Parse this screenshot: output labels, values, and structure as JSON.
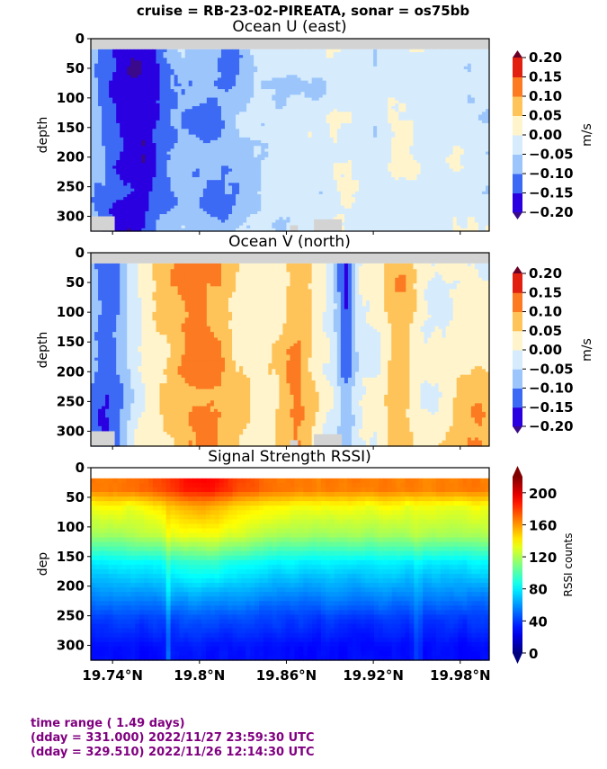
{
  "figure": {
    "suptitle": "cruise = RB-23-02-PIREATA,  sonar = os75bb"
  },
  "chart_data": [
    {
      "type": "heatmap",
      "title": "Ocean U (east)",
      "xlabel": "",
      "ylabel": "depth",
      "x_ticks": [
        "19.74°N",
        "19.8°N",
        "19.86°N",
        "19.92°N",
        "19.98°N"
      ],
      "x_tick_values": [
        19.74,
        19.8,
        19.86,
        19.92,
        19.98
      ],
      "xlim": [
        19.725,
        20.0
      ],
      "y_ticks": [
        "0",
        "50",
        "100",
        "150",
        "200",
        "250",
        "300"
      ],
      "y_tick_values": [
        0,
        50,
        100,
        150,
        200,
        250,
        300
      ],
      "ylim": [
        325,
        0
      ],
      "colorbar": {
        "label": "m/s",
        "ticks": [
          "0.20",
          "0.15",
          "0.10",
          "0.05",
          "0.00",
          "−0.05",
          "−0.10",
          "−0.15",
          "−0.20"
        ],
        "levels": [
          -0.2,
          -0.15,
          -0.1,
          -0.05,
          0.0,
          0.05,
          0.1,
          0.15,
          0.2
        ],
        "colors": [
          "#2a00e0",
          "#3d6af5",
          "#9cc6fb",
          "#d6ecfd",
          "#fff4cc",
          "#fec45a",
          "#fb7a22",
          "#e1200f"
        ],
        "under_color": "#3b0a8a",
        "over_color": "#6a0026"
      },
      "description_trend": "mostly negative (westward) flow, strongest in west near 19.75-19.78°N"
    },
    {
      "type": "heatmap",
      "title": "Ocean V (north)",
      "xlabel": "",
      "ylabel": "depth",
      "x_ticks": [
        "19.74°N",
        "19.8°N",
        "19.86°N",
        "19.92°N",
        "19.98°N"
      ],
      "x_tick_values": [
        19.74,
        19.8,
        19.86,
        19.92,
        19.98
      ],
      "xlim": [
        19.725,
        20.0
      ],
      "y_ticks": [
        "0",
        "50",
        "100",
        "150",
        "200",
        "250",
        "300"
      ],
      "y_tick_values": [
        0,
        50,
        100,
        150,
        200,
        250,
        300
      ],
      "ylim": [
        325,
        0
      ],
      "colorbar": {
        "label": "m/s",
        "ticks": [
          "0.20",
          "0.15",
          "0.10",
          "0.05",
          "0.00",
          "−0.05",
          "−0.10",
          "−0.15",
          "−0.20"
        ],
        "levels": [
          -0.2,
          -0.15,
          -0.1,
          -0.05,
          0.0,
          0.05,
          0.1,
          0.15,
          0.2
        ],
        "colors": [
          "#2a00e0",
          "#3d6af5",
          "#9cc6fb",
          "#d6ecfd",
          "#fff4cc",
          "#fec45a",
          "#fb7a22",
          "#e1200f"
        ],
        "under_color": "#3b0a8a",
        "over_color": "#6a0026"
      },
      "description_trend": "negative in west (<19.77°N), positive 19.77-19.84°N, mixed/negative near 19.88°N, positive near 19.97-20.0°N deep"
    },
    {
      "type": "heatmap",
      "title": "Signal Strength RSSI)",
      "xlabel": "",
      "ylabel": "dep",
      "x_ticks": [
        "19.74°N",
        "19.8°N",
        "19.86°N",
        "19.92°N",
        "19.98°N"
      ],
      "x_tick_values": [
        19.74,
        19.8,
        19.86,
        19.92,
        19.98
      ],
      "xlim": [
        19.725,
        20.0
      ],
      "y_ticks": [
        "0",
        "50",
        "100",
        "150",
        "200",
        "250",
        "300"
      ],
      "y_tick_values": [
        0,
        50,
        100,
        150,
        200,
        250,
        300
      ],
      "ylim": [
        325,
        0
      ],
      "colorbar": {
        "label": "RSSI counts",
        "ticks": [
          "200",
          "160",
          "120",
          "80",
          "40",
          "0"
        ],
        "tick_values": [
          200,
          160,
          120,
          80,
          40,
          0
        ],
        "range": [
          0,
          220
        ],
        "colormap": "jet"
      },
      "depth_profile": [
        {
          "depth": 20,
          "value": 165
        },
        {
          "depth": 50,
          "value": 135
        },
        {
          "depth": 100,
          "value": 118
        },
        {
          "depth": 150,
          "value": 80
        },
        {
          "depth": 200,
          "value": 60
        },
        {
          "depth": 250,
          "value": 40
        },
        {
          "depth": 300,
          "value": 30
        }
      ]
    }
  ],
  "footer": {
    "line1": "time range ( 1.49 days)",
    "line2": "(dday = 331.000) 2022/11/27 23:59:30 UTC",
    "line3": "(dday = 329.510) 2022/11/26 12:14:30 UTC"
  }
}
